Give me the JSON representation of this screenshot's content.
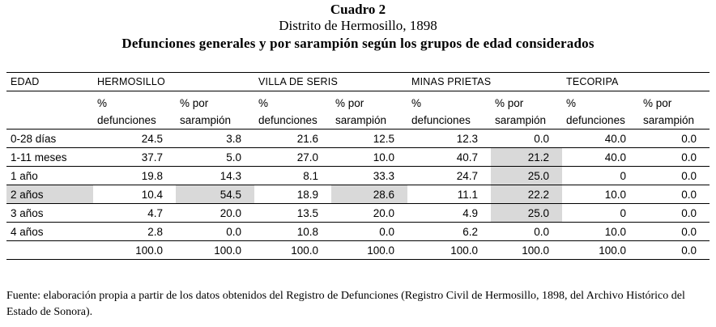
{
  "title": {
    "line1": "Cuadro 2",
    "line2": "Distrito de Hermosillo, 1898",
    "line3": "Defunciones generales y por sarampión según los grupos de edad considerados"
  },
  "table": {
    "col_edad": "EDAD",
    "groups": [
      "HERMOSILLO",
      "VILLA DE SERIS",
      "MINAS PRIETAS",
      "TECORIPA"
    ],
    "sub_a": [
      "%",
      "defunciones"
    ],
    "sub_b": [
      "% por",
      "sarampión"
    ],
    "rows": [
      {
        "edad": "0-28 días",
        "v": [
          "24.5",
          "3.8",
          "21.6",
          "12.5",
          "12.3",
          "0.0",
          "40.0",
          "0.0"
        ]
      },
      {
        "edad": "1-11 meses",
        "v": [
          "37.7",
          "5.0",
          "27.0",
          "10.0",
          "40.7",
          "21.2",
          "40.0",
          "0.0"
        ]
      },
      {
        "edad": "1 año",
        "v": [
          "19.8",
          "14.3",
          "8.1",
          "33.3",
          "24.7",
          "25.0",
          "0",
          "0.0"
        ]
      },
      {
        "edad": "2 años",
        "v": [
          "10.4",
          "54.5",
          "18.9",
          "28.6",
          "11.1",
          "22.2",
          "10.0",
          "0.0"
        ]
      },
      {
        "edad": "3 años",
        "v": [
          "4.7",
          "20.0",
          "13.5",
          "20.0",
          "4.9",
          "25.0",
          "0",
          "0.0"
        ]
      },
      {
        "edad": "4 años",
        "v": [
          "2.8",
          "0.0",
          "10.8",
          "0.0",
          "6.2",
          "0.0",
          "10.0",
          "0.0"
        ]
      },
      {
        "edad": "",
        "v": [
          "100.0",
          "100.0",
          "100.0",
          "100.0",
          "100.0",
          "100.0",
          "100.0",
          "0.0"
        ]
      }
    ],
    "highlight_color": "#d9d9d9"
  },
  "note": "Fuente: elaboración propia a partir de los datos obtenidos del Registro de Defunciones (Registro Civil de Hermosillo, 1898, del Archivo Histórico del Estado de Sonora)."
}
